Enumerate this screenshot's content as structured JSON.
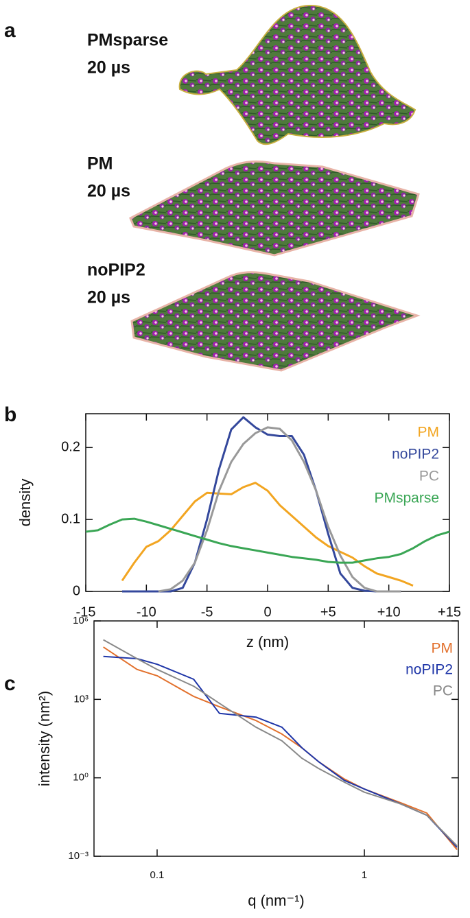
{
  "panel_a": {
    "label": "a",
    "snapshots": [
      {
        "name": "PMsparse",
        "time": "20 µs"
      },
      {
        "name": "PM",
        "time": "20 µs"
      },
      {
        "name": "noPIP2",
        "time": "20 µs"
      }
    ]
  },
  "chart_data": [
    {
      "type": "line",
      "panel_label": "b",
      "xlabel": "z (nm)",
      "ylabel": "density",
      "xscale": "linear",
      "yscale": "linear",
      "legend": "upper right",
      "grid": false,
      "xlim": [
        -15,
        15
      ],
      "ylim": [
        0,
        0.247
      ],
      "xticks": [
        -15,
        -10,
        -5,
        0,
        {
          "value": 5,
          "label": "+5"
        },
        {
          "value": 10,
          "label": "+10"
        },
        {
          "value": 15,
          "label": "+15"
        }
      ],
      "yticks": [
        0,
        0.1,
        0.2
      ],
      "x": [
        -15,
        -14,
        -13,
        -12,
        -11,
        -10,
        -9,
        -8,
        -7,
        -6,
        -5,
        -4,
        -3,
        -2,
        -1,
        0,
        1,
        2,
        3,
        4,
        5,
        6,
        7,
        8,
        9,
        10,
        11,
        12,
        13,
        14,
        15
      ],
      "series": [
        {
          "name": "PM",
          "color": "#f2a521",
          "values": [
            null,
            null,
            null,
            0.015,
            0.04,
            0.062,
            0.07,
            0.085,
            0.105,
            0.125,
            0.137,
            0.136,
            0.135,
            0.145,
            0.151,
            0.14,
            0.12,
            0.105,
            0.09,
            0.075,
            0.063,
            0.055,
            0.047,
            0.035,
            0.025,
            0.02,
            0.015,
            0.008,
            null,
            null,
            null
          ]
        },
        {
          "name": "noPIP2",
          "color": "#34489c",
          "values": [
            null,
            null,
            null,
            0,
            0,
            0,
            0,
            0,
            0.005,
            0.04,
            0.1,
            0.17,
            0.225,
            0.242,
            0.228,
            0.218,
            0.216,
            0.216,
            0.19,
            0.14,
            0.08,
            0.025,
            0.005,
            0.001,
            0,
            0,
            0,
            null,
            null,
            null,
            null
          ]
        },
        {
          "name": "PC",
          "color": "#999999",
          "values": [
            null,
            null,
            null,
            null,
            null,
            null,
            0,
            0.003,
            0.015,
            0.04,
            0.085,
            0.14,
            0.18,
            0.205,
            0.22,
            0.228,
            0.226,
            0.21,
            0.18,
            0.14,
            0.09,
            0.05,
            0.02,
            0.005,
            0,
            0,
            0,
            null,
            null,
            null,
            null
          ]
        },
        {
          "name": "PMsparse",
          "color": "#3aa655",
          "values": [
            0.083,
            0.085,
            0.093,
            0.1,
            0.101,
            0.097,
            0.092,
            0.087,
            0.082,
            0.077,
            0.072,
            0.067,
            0.063,
            0.06,
            0.057,
            0.054,
            0.051,
            0.048,
            0.046,
            0.044,
            0.041,
            0.04,
            0.04,
            0.043,
            0.046,
            0.048,
            0.052,
            0.06,
            0.07,
            0.078,
            0.083
          ]
        }
      ]
    },
    {
      "type": "line",
      "panel_label": "c",
      "xlabel": "q (nm⁻¹)",
      "ylabel": "intensity (nm²)",
      "xscale": "log",
      "yscale": "log",
      "legend": "upper right",
      "grid": false,
      "xlim": [
        0.0496,
        2.84
      ],
      "ylim": [
        0.001,
        1000000
      ],
      "xticks": [
        0.1,
        1
      ],
      "yticks": [
        {
          "value": 0.001,
          "label": "10⁻³"
        },
        {
          "value": 1,
          "label": "10⁰"
        },
        {
          "value": 1000,
          "label": "10³"
        },
        {
          "value": 1000000,
          "label": "10⁶"
        }
      ],
      "x": [
        0.055,
        0.08,
        0.1,
        0.15,
        0.2,
        0.3,
        0.4,
        0.5,
        0.6,
        0.8,
        1,
        1.5,
        2,
        2.8
      ],
      "series": [
        {
          "name": "PM",
          "color": "#e2702c",
          "values": [
            100000,
            14000,
            8000,
            1300,
            520,
            155,
            47,
            14,
            4.2,
            0.9,
            0.37,
            0.11,
            0.045,
            0.0018
          ]
        },
        {
          "name": "noPIP2",
          "color": "#1f36a8",
          "values": [
            44000,
            36000,
            22000,
            5900,
            290,
            210,
            86,
            14,
            4.2,
            0.8,
            0.37,
            0.1,
            0.037,
            0.0022
          ]
        },
        {
          "name": "PC",
          "color": "#888888",
          "values": [
            190000,
            36000,
            14000,
            3200,
            700,
            86,
            26,
            5.6,
            2.3,
            0.68,
            0.28,
            0.1,
            0.037,
            0.0025
          ]
        }
      ]
    }
  ]
}
